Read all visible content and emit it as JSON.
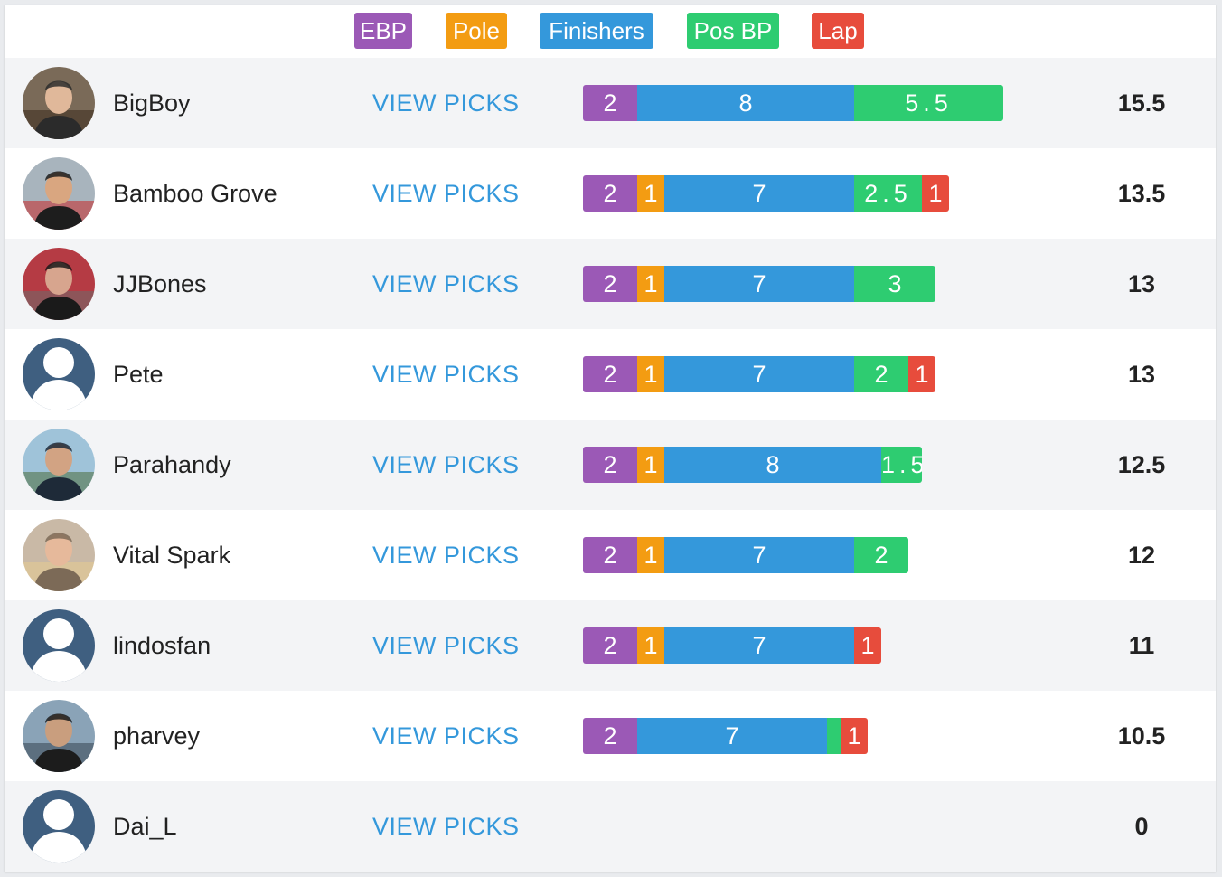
{
  "legend": [
    {
      "label": "EBP",
      "key": "ebp"
    },
    {
      "label": "Pole",
      "key": "pole"
    },
    {
      "label": "Finishers",
      "key": "finishers"
    },
    {
      "label": "Pos BP",
      "key": "posbp"
    },
    {
      "label": "Lap",
      "key": "lap"
    }
  ],
  "colors": {
    "ebp": "#9b59b6",
    "pole": "#f39c12",
    "finishers": "#3498db",
    "posbp": "#2ecc71",
    "lap": "#e74c3c",
    "link": "#3498db"
  },
  "view_picks_label": "VIEW PICKS",
  "rows": [
    {
      "name": "BigBoy",
      "avatar": "photo",
      "total": "15.5",
      "segments": [
        {
          "key": "ebp",
          "value": 2,
          "label": "2"
        },
        {
          "key": "finishers",
          "value": 8,
          "label": "8"
        },
        {
          "key": "posbp",
          "value": 5.5,
          "label": "5.5"
        }
      ]
    },
    {
      "name": "Bamboo Grove",
      "avatar": "photo",
      "total": "13.5",
      "segments": [
        {
          "key": "ebp",
          "value": 2,
          "label": "2"
        },
        {
          "key": "pole",
          "value": 1,
          "label": "1"
        },
        {
          "key": "finishers",
          "value": 7,
          "label": "7"
        },
        {
          "key": "posbp",
          "value": 2.5,
          "label": "2.5"
        },
        {
          "key": "lap",
          "value": 1,
          "label": "1"
        }
      ]
    },
    {
      "name": "JJBones",
      "avatar": "photo",
      "total": "13",
      "segments": [
        {
          "key": "ebp",
          "value": 2,
          "label": "2"
        },
        {
          "key": "pole",
          "value": 1,
          "label": "1"
        },
        {
          "key": "finishers",
          "value": 7,
          "label": "7"
        },
        {
          "key": "posbp",
          "value": 3,
          "label": "3"
        }
      ]
    },
    {
      "name": "Pete",
      "avatar": "default",
      "total": "13",
      "segments": [
        {
          "key": "ebp",
          "value": 2,
          "label": "2"
        },
        {
          "key": "pole",
          "value": 1,
          "label": "1"
        },
        {
          "key": "finishers",
          "value": 7,
          "label": "7"
        },
        {
          "key": "posbp",
          "value": 2,
          "label": "2"
        },
        {
          "key": "lap",
          "value": 1,
          "label": "1"
        }
      ]
    },
    {
      "name": "Parahandy",
      "avatar": "photo",
      "total": "12.5",
      "segments": [
        {
          "key": "ebp",
          "value": 2,
          "label": "2"
        },
        {
          "key": "pole",
          "value": 1,
          "label": "1"
        },
        {
          "key": "finishers",
          "value": 8,
          "label": "8"
        },
        {
          "key": "posbp",
          "value": 1.5,
          "label": "1.5"
        }
      ]
    },
    {
      "name": "Vital Spark",
      "avatar": "photo",
      "total": "12",
      "segments": [
        {
          "key": "ebp",
          "value": 2,
          "label": "2"
        },
        {
          "key": "pole",
          "value": 1,
          "label": "1"
        },
        {
          "key": "finishers",
          "value": 7,
          "label": "7"
        },
        {
          "key": "posbp",
          "value": 2,
          "label": "2"
        }
      ]
    },
    {
      "name": "lindosfan",
      "avatar": "default",
      "total": "11",
      "segments": [
        {
          "key": "ebp",
          "value": 2,
          "label": "2"
        },
        {
          "key": "pole",
          "value": 1,
          "label": "1"
        },
        {
          "key": "finishers",
          "value": 7,
          "label": "7"
        },
        {
          "key": "lap",
          "value": 1,
          "label": "1"
        }
      ]
    },
    {
      "name": "pharvey",
      "avatar": "photo",
      "total": "10.5",
      "segments": [
        {
          "key": "ebp",
          "value": 2,
          "label": "2"
        },
        {
          "key": "finishers",
          "value": 7,
          "label": "7"
        },
        {
          "key": "posbp",
          "value": 0.5,
          "label": ""
        },
        {
          "key": "lap",
          "value": 1,
          "label": "1"
        }
      ]
    },
    {
      "name": "Dai_L",
      "avatar": "default",
      "total": "0",
      "segments": []
    }
  ]
}
